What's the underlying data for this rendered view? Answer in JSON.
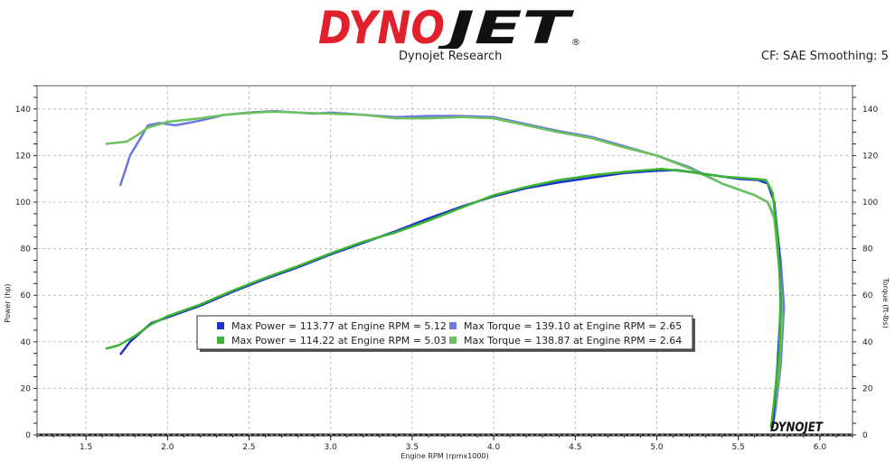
{
  "brand": {
    "logo_text": "DYNOJET",
    "logo_mark": "®",
    "subtitle": "Dynojet Research",
    "settings": "CF: SAE Smoothing: 5",
    "watermark": "DYNOJET"
  },
  "colors": {
    "logo_red": "#e0202a",
    "logo_black": "#111111",
    "power_run1": "#1a33cc",
    "power_run2": "#3cb432",
    "torque_run1": "#6a78e0",
    "torque_run2": "#6cc25e",
    "grid": "#bfbfbf"
  },
  "chart_data": {
    "type": "line",
    "xlabel": "Engine RPM (rpmx1000)",
    "ylabel_left": "Power (hp)",
    "ylabel_right": "Torque (ft-lbs)",
    "xlim": [
      1.2,
      6.2
    ],
    "ylim_left": [
      0,
      150
    ],
    "ylim_right": [
      0,
      150
    ],
    "x_ticks": [
      "1.5",
      "2.0",
      "2.5",
      "3.0",
      "3.5",
      "4.0",
      "4.5",
      "5.0",
      "5.5",
      "6.0"
    ],
    "y_ticks": [
      "0",
      "20",
      "40",
      "60",
      "80",
      "100",
      "120",
      "140"
    ],
    "grid": true,
    "legend": [
      {
        "label": "Max Power = 113.77 at Engine RPM = 5.12",
        "color": "#1a33cc"
      },
      {
        "label": "Max Power = 114.22 at Engine RPM = 5.03",
        "color": "#3cb432"
      },
      {
        "label": "Max Torque = 139.10 at Engine RPM = 2.65",
        "color": "#6a78e0"
      },
      {
        "label": "Max Torque = 138.87 at Engine RPM = 2.64",
        "color": "#6cc25e"
      }
    ],
    "series": [
      {
        "color": "#6a78e0",
        "points": [
          [
            1.71,
            107
          ],
          [
            1.77,
            120
          ],
          [
            1.83,
            127
          ],
          [
            1.88,
            133
          ],
          [
            1.95,
            134
          ],
          [
            2.05,
            133
          ],
          [
            2.2,
            135
          ],
          [
            2.35,
            137.5
          ],
          [
            2.5,
            138.5
          ],
          [
            2.65,
            139.1
          ],
          [
            2.8,
            138.5
          ],
          [
            2.9,
            138
          ],
          [
            3.0,
            138.5
          ],
          [
            3.2,
            137.5
          ],
          [
            3.4,
            136.5
          ],
          [
            3.6,
            137
          ],
          [
            3.8,
            137
          ],
          [
            4.0,
            136.5
          ],
          [
            4.2,
            133.5
          ],
          [
            4.4,
            130.5
          ],
          [
            4.6,
            128
          ],
          [
            4.8,
            124
          ],
          [
            5.0,
            120
          ],
          [
            5.2,
            115
          ],
          [
            5.4,
            108
          ],
          [
            5.6,
            103
          ],
          [
            5.68,
            100
          ],
          [
            5.72,
            94
          ],
          [
            5.76,
            75
          ],
          [
            5.78,
            55
          ],
          [
            5.76,
            30
          ],
          [
            5.73,
            12
          ],
          [
            5.71,
            3
          ]
        ]
      },
      {
        "color": "#6cc25e",
        "points": [
          [
            1.62,
            125
          ],
          [
            1.75,
            126
          ],
          [
            1.82,
            129
          ],
          [
            1.88,
            132
          ],
          [
            2.0,
            134.5
          ],
          [
            2.2,
            136
          ],
          [
            2.35,
            137.5
          ],
          [
            2.5,
            138.3
          ],
          [
            2.64,
            138.87
          ],
          [
            2.8,
            138.5
          ],
          [
            3.0,
            138
          ],
          [
            3.2,
            137.5
          ],
          [
            3.4,
            136
          ],
          [
            3.6,
            136
          ],
          [
            3.8,
            136.5
          ],
          [
            4.0,
            136
          ],
          [
            4.2,
            133
          ],
          [
            4.4,
            130
          ],
          [
            4.6,
            127.5
          ],
          [
            4.8,
            123.5
          ],
          [
            5.0,
            120
          ],
          [
            5.2,
            114.5
          ],
          [
            5.4,
            108
          ],
          [
            5.6,
            103
          ],
          [
            5.68,
            100
          ],
          [
            5.72,
            93
          ],
          [
            5.75,
            72
          ],
          [
            5.77,
            50
          ],
          [
            5.75,
            28
          ],
          [
            5.72,
            10
          ],
          [
            5.7,
            3
          ]
        ]
      },
      {
        "color": "#1a33cc",
        "points": [
          [
            1.71,
            34.5
          ],
          [
            1.77,
            40
          ],
          [
            1.85,
            45
          ],
          [
            1.9,
            48
          ],
          [
            2.0,
            50.5
          ],
          [
            2.2,
            55.5
          ],
          [
            2.4,
            61.5
          ],
          [
            2.6,
            67
          ],
          [
            2.8,
            72
          ],
          [
            3.0,
            77.5
          ],
          [
            3.2,
            82.5
          ],
          [
            3.4,
            87.5
          ],
          [
            3.6,
            93
          ],
          [
            3.8,
            98
          ],
          [
            4.0,
            102.5
          ],
          [
            4.2,
            106
          ],
          [
            4.4,
            108.5
          ],
          [
            4.6,
            110.5
          ],
          [
            4.8,
            112.5
          ],
          [
            5.0,
            113.5
          ],
          [
            5.12,
            113.77
          ],
          [
            5.3,
            112
          ],
          [
            5.5,
            110
          ],
          [
            5.62,
            109.5
          ],
          [
            5.68,
            108
          ],
          [
            5.72,
            100
          ],
          [
            5.75,
            80
          ],
          [
            5.76,
            55
          ],
          [
            5.74,
            30
          ],
          [
            5.72,
            12
          ],
          [
            5.71,
            3
          ]
        ]
      },
      {
        "color": "#3cb432",
        "points": [
          [
            1.62,
            37
          ],
          [
            1.7,
            38.5
          ],
          [
            1.8,
            42.5
          ],
          [
            1.9,
            47.5
          ],
          [
            2.0,
            51
          ],
          [
            2.2,
            56
          ],
          [
            2.4,
            62
          ],
          [
            2.6,
            67.5
          ],
          [
            2.8,
            72.5
          ],
          [
            3.0,
            78
          ],
          [
            3.2,
            83
          ],
          [
            3.4,
            87
          ],
          [
            3.6,
            92
          ],
          [
            3.8,
            97.5
          ],
          [
            4.0,
            103
          ],
          [
            4.2,
            106.5
          ],
          [
            4.4,
            109.5
          ],
          [
            4.6,
            111.5
          ],
          [
            4.8,
            113
          ],
          [
            5.03,
            114.22
          ],
          [
            5.2,
            113
          ],
          [
            5.4,
            111
          ],
          [
            5.6,
            110
          ],
          [
            5.67,
            109.5
          ],
          [
            5.71,
            104
          ],
          [
            5.74,
            85
          ],
          [
            5.76,
            60
          ],
          [
            5.75,
            35
          ],
          [
            5.72,
            15
          ],
          [
            5.7,
            3
          ]
        ]
      }
    ]
  }
}
